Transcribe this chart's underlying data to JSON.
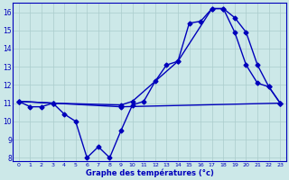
{
  "xlabel": "Graphe des températures (°c)",
  "bg_color": "#cce8e8",
  "grid_color": "#aacccc",
  "line_color": "#0000bb",
  "xlim": [
    -0.5,
    23.5
  ],
  "ylim": [
    7.8,
    16.5
  ],
  "yticks": [
    8,
    9,
    10,
    11,
    12,
    13,
    14,
    15,
    16
  ],
  "xticks": [
    0,
    1,
    2,
    3,
    4,
    5,
    6,
    7,
    8,
    9,
    10,
    11,
    12,
    13,
    14,
    15,
    16,
    17,
    18,
    19,
    20,
    21,
    22,
    23
  ],
  "series1_x": [
    0,
    1,
    2,
    3,
    4,
    5,
    6,
    7,
    8,
    9,
    10,
    11,
    12,
    13,
    14,
    15,
    16,
    17,
    18,
    19,
    20,
    21,
    22,
    23
  ],
  "series1_y": [
    11.1,
    10.8,
    10.8,
    11.0,
    10.4,
    10.0,
    8.0,
    8.6,
    8.0,
    9.5,
    10.9,
    11.1,
    12.2,
    13.1,
    13.3,
    15.4,
    15.5,
    16.2,
    16.2,
    14.9,
    13.1,
    12.1,
    11.9,
    11.0
  ],
  "series2_x": [
    0,
    3,
    9,
    10,
    14,
    17,
    18,
    19,
    20,
    21,
    22,
    23
  ],
  "series2_y": [
    11.1,
    11.0,
    10.9,
    11.1,
    13.3,
    16.2,
    16.2,
    15.7,
    14.9,
    13.1,
    11.9,
    11.0
  ],
  "series3_x": [
    0,
    3,
    9,
    23
  ],
  "series3_y": [
    11.1,
    11.0,
    10.8,
    11.0
  ],
  "markersize": 2.5,
  "linewidth": 1.0
}
